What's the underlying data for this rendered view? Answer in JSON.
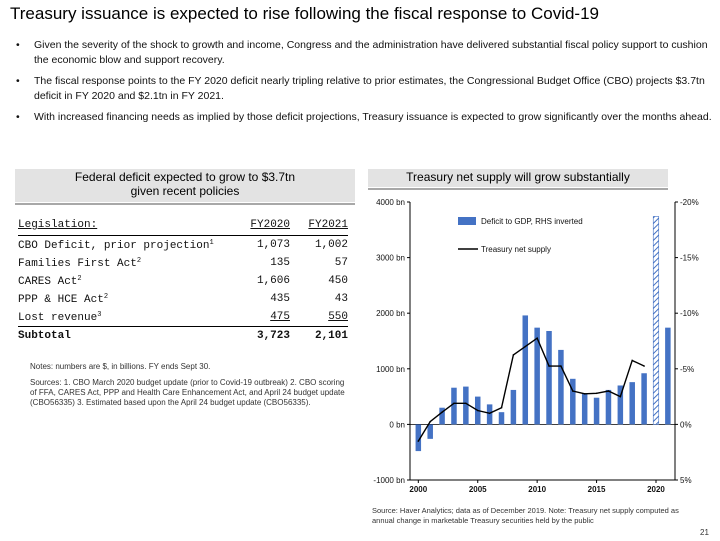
{
  "title": "Treasury issuance is expected to rise following the fiscal response to Covid-19",
  "bullets": [
    "Given the severity of the shock to growth and income, Congress and the administration have delivered substantial fiscal policy support to cushion the economic blow and support recovery.",
    "The fiscal response points to the FY 2020 deficit nearly tripling relative to prior estimates, the Congressional Budget Office (CBO) projects $3.7tn deficit in FY 2020 and $2.1tn in FY 2021.",
    "With increased financing needs as implied by those deficit projections, Treasury issuance is expected to grow significantly over the months ahead."
  ],
  "bullet_symbol": "•",
  "left_panel": {
    "title_line1": "Federal deficit expected to grow to $3.7tn",
    "title_line2": "given recent policies",
    "table": {
      "headers": [
        "Legislation:",
        "FY2020",
        "FY2021"
      ],
      "rows": [
        {
          "label": "CBO Deficit, prior projection",
          "sup": "1",
          "fy2020": "1,073",
          "fy2021": "1,002"
        },
        {
          "label": "Families First Act",
          "sup": "2",
          "fy2020": "135",
          "fy2021": "57"
        },
        {
          "label": "CARES Act",
          "sup": "2",
          "fy2020": "1,606",
          "fy2021": "450"
        },
        {
          "label": "PPP & HCE Act",
          "sup": "2",
          "fy2020": "435",
          "fy2021": "43"
        },
        {
          "label": "Lost revenue",
          "sup": "3",
          "fy2020": "475",
          "fy2021": "550"
        }
      ],
      "subtotal": {
        "label": "Subtotal",
        "fy2020": "3,723",
        "fy2021": "2,101"
      }
    },
    "note": "Notes: numbers are $, in billions.  FY ends Sept 30.",
    "sources": "Sources: 1. CBO March 2020 budget update (prior to Covid-19 outbreak) 2. CBO scoring of FFA, CARES Act, PPP and Health Care Enhancement Act, and April 24 budget update (CBO56335) 3. Estimated based upon the April 24 budget update (CBO56335)."
  },
  "right_panel": {
    "title": "Treasury net supply will grow substantially",
    "source": "Source: Haver Analytics; data as of December 2019. Note: Treasury net supply computed as annual change in marketable Treasury securities held by the public"
  },
  "page_number": "21",
  "colors": {
    "bar": "#4472c4",
    "line": "#000000",
    "panel_title_bg": "#e3e3e3"
  },
  "chart_data": {
    "type": "bar",
    "legend": [
      "Deficit to GDP, RHS inverted",
      "Treasury net supply"
    ],
    "legend_position": "top-right",
    "x_ticks": [
      "2000",
      "2005",
      "2010",
      "2015",
      "2020"
    ],
    "y_left_ticks": [
      "4000 bn",
      "3000 bn",
      "2000 bn",
      "1000 bn",
      "0 bn",
      "-1000 bn"
    ],
    "y_right_ticks": [
      "-20%",
      "-15%",
      "-10%",
      "-5%",
      "0%",
      "5%"
    ],
    "ylim_left": [
      -1000,
      4000
    ],
    "ylim_right_inverted": [
      5,
      -20
    ],
    "grid": false,
    "deficit_to_gdp": {
      "name": "Deficit to GDP, RHS inverted",
      "x": [
        2000,
        2001,
        2002,
        2003,
        2004,
        2005,
        2006,
        2007,
        2008,
        2009,
        2010,
        2011,
        2012,
        2013,
        2014,
        2015,
        2016,
        2017,
        2018,
        2019
      ],
      "values": [
        2.4,
        1.3,
        -1.5,
        -3.3,
        -3.4,
        -2.5,
        -1.8,
        -1.1,
        -3.1,
        -9.8,
        -8.7,
        -8.4,
        -6.7,
        -4.1,
        -2.8,
        -2.4,
        -3.1,
        -3.5,
        -3.8,
        -4.6
      ]
    },
    "projected_deficit_to_gdp": {
      "x": [
        2020,
        2021
      ],
      "values": [
        -18.7,
        -8.7
      ]
    },
    "treasury_net_supply": {
      "name": "Treasury net supply",
      "x": [
        2000,
        2001,
        2002,
        2003,
        2004,
        2005,
        2006,
        2007,
        2008,
        2009,
        2010,
        2011,
        2012,
        2013,
        2014,
        2015,
        2016,
        2017,
        2018,
        2019
      ],
      "values": [
        -300,
        50,
        220,
        380,
        380,
        250,
        200,
        300,
        1250,
        1400,
        1550,
        1050,
        1050,
        600,
        550,
        560,
        600,
        500,
        1150,
        1050
      ]
    }
  }
}
